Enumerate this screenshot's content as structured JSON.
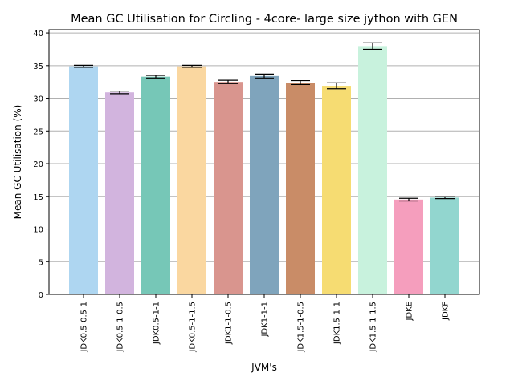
{
  "chart_data": {
    "type": "bar",
    "title": "Mean GC Utilisation for Circling - 4core- large size jython with GEN",
    "xlabel": "JVM's",
    "ylabel": "Mean GC Utilisation (%)",
    "ylim": [
      0,
      40.5
    ],
    "yticks": [
      "0",
      "5",
      "10",
      "15",
      "20",
      "25",
      "30",
      "35",
      "40"
    ],
    "grid": "horizontal",
    "categories": [
      "JDK0.5-0.5-1",
      "JDK0.5-1-0.5",
      "JDK0.5-1-1",
      "JDK0.5-1-1.5",
      "JDK1-1-0.5",
      "JDK1-1-1",
      "JDK1.5-1-0.5",
      "JDK1.5-1-1",
      "JDK1.5-1-1.5",
      "JDKE",
      "JDKF"
    ],
    "values": [
      34.9,
      30.9,
      33.3,
      34.9,
      32.5,
      33.4,
      32.4,
      31.9,
      38.0,
      14.5,
      14.8
    ],
    "errors": [
      0.15,
      0.2,
      0.2,
      0.15,
      0.25,
      0.3,
      0.3,
      0.45,
      0.5,
      0.2,
      0.15
    ],
    "colors": [
      "#aed6f1",
      "#d2b4de",
      "#76c7b7",
      "#fad7a0",
      "#d9958e",
      "#7fa4bc",
      "#c98c67",
      "#f6dc72",
      "#c8f2dd",
      "#f59ebd",
      "#92d6cf"
    ]
  }
}
